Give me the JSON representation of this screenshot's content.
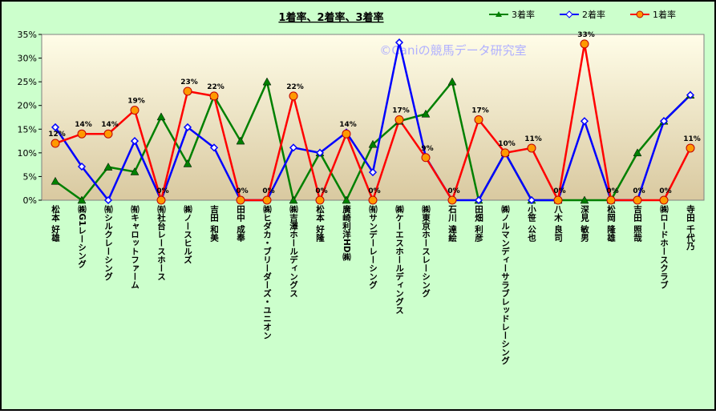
{
  "chart_data": {
    "type": "line",
    "title": "1着率、2着率、3着率",
    "watermark": "©Caniの競馬データ研究室",
    "categories": [
      "松本 好雄",
      "㈱G1レーシング",
      "㈲シルクレーシング",
      "㈲キャロットファーム",
      "㈲社台レースホース",
      "㈱ノースヒルズ",
      "吉田 和美",
      "田中 成奉",
      "㈱ヒダカ・ブリーダーズ・ユニオン",
      "㈱吉澤ホールディングス",
      "松本 好隆",
      "廣崎利洋HD㈱",
      "㈲サンデーレーシング",
      "㈱ケーエスホールディングス",
      "㈱東京ホースレーシング",
      "石川 達絵",
      "田畑 利彦",
      "㈱ノルマンディーサラブレッドレーシング",
      "小笹 公也",
      "八木 良司",
      "深見 敏男",
      "松岡 隆雄",
      "吉田 照哉",
      "㈱ロードホースクラブ",
      "寺田 千代乃"
    ],
    "series": [
      {
        "name": "3着率",
        "color": "#008000",
        "marker": "triangle",
        "values": [
          4,
          0,
          7,
          6,
          17.6,
          7.7,
          22,
          12.5,
          25,
          0,
          10,
          0,
          11.8,
          16.7,
          18.2,
          25,
          0,
          10,
          0,
          0,
          0,
          0,
          10,
          16.7,
          22.2
        ]
      },
      {
        "name": "2着率",
        "color": "#0000ff",
        "marker": "diamond",
        "values": [
          15.4,
          7.1,
          0,
          12.5,
          0,
          15.4,
          11.1,
          0,
          0,
          11.1,
          10,
          14.3,
          5.9,
          33.3,
          9.1,
          0,
          0,
          10,
          0,
          0,
          16.7,
          0,
          0,
          16.7,
          22.2
        ]
      },
      {
        "name": "1着率",
        "color": "#ff0000",
        "marker": "circle",
        "values": [
          12,
          14,
          14,
          19,
          0,
          23,
          22,
          0,
          0,
          22,
          0,
          14,
          0,
          17,
          9,
          0,
          17,
          10,
          11,
          0,
          33,
          0,
          0,
          0,
          11
        ],
        "value_labels": [
          "12%",
          "14%",
          "14%",
          "19%",
          "0%",
          "23%",
          "22%",
          "0%",
          "0%",
          "22%",
          "0%",
          "14%",
          "0%",
          "17%",
          "9%",
          "0%",
          "17%",
          "10%",
          "11%",
          "0%",
          "33%",
          "0%",
          "0%",
          "0%",
          "11%"
        ]
      }
    ],
    "ylim": [
      0,
      35
    ],
    "yticks": [
      {
        "value": 0,
        "label": "0%"
      },
      {
        "value": 5,
        "label": "5%"
      },
      {
        "value": 10,
        "label": "10%"
      },
      {
        "value": 15,
        "label": "15%"
      },
      {
        "value": 20,
        "label": "20%"
      },
      {
        "value": 25,
        "label": "25%"
      },
      {
        "value": 30,
        "label": "30%"
      },
      {
        "value": 35,
        "label": "35%"
      }
    ],
    "legend": "top-right"
  }
}
